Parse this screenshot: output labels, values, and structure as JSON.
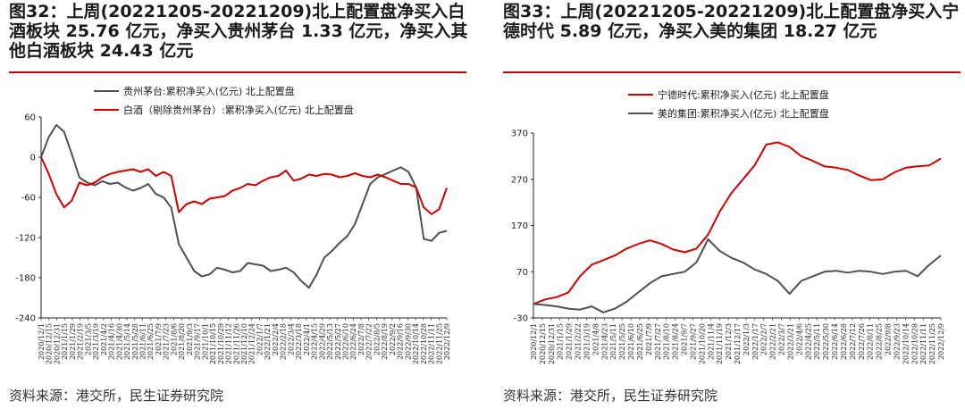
{
  "left": {
    "title": "图32：上周(20221205-20221209)北上配置盘净买入白酒板块 25.76 亿元，净买入贵州茅台 1.33 亿元，净买入其他白酒板块 24.43 亿元",
    "source": "资料来源：港交所，民生证券研究院"
  },
  "right": {
    "title": "图33：上周(20221205-20221209)北上配置盘净买入宁德时代 5.89 亿元，净买入美的集团 18.27 亿元",
    "source": "资料来源：港交所，民生证券研究院"
  },
  "chart_data": [
    {
      "type": "line",
      "ylim": [
        -240,
        60
      ],
      "yticks": [
        60,
        0,
        -60,
        -120,
        -180,
        -240
      ],
      "grid": false,
      "legend_position": "top-center",
      "x": [
        "2020/12/1",
        "2020/12/15",
        "2020/12/29",
        "2021/1/12",
        "2021/1/26",
        "2021/2/9",
        "2021/2/23",
        "2021/3/9",
        "2021/3/23",
        "2021/4/6",
        "2021/4/20",
        "2021/5/4",
        "2021/5/18",
        "2021/6/1",
        "2021/6/15",
        "2021/6/29",
        "2021/7/13",
        "2021/7/27",
        "2021/8/10",
        "2021/8/24",
        "2021/9/7",
        "2021/9/21",
        "2021/10/5",
        "2021/10/19",
        "2021/11/2",
        "2021/11/16",
        "2021/11/30",
        "2021/12/14",
        "2021/12/28",
        "2022/1/11",
        "2022/1/25",
        "2022/2/8",
        "2022/2/22",
        "2022/3/8",
        "2022/3/22",
        "2022/4/5",
        "2022/4/19",
        "2022/5/3",
        "2022/5/17",
        "2022/5/31",
        "2022/6/14",
        "2022/6/28",
        "2022/7/12",
        "2022/7/26",
        "2022/8/9",
        "2022/8/23",
        "2022/9/6",
        "2022/9/20",
        "2022/10/4",
        "2022/10/18",
        "2022/11/1",
        "2022/11/15",
        "2022/11/29",
        "2022/12/9"
      ],
      "x_tick_labels": [
        "2020/12/1",
        "2020/12/15",
        "2020/12/31",
        "2021/1/15",
        "2021/1/29",
        "2021/2/19",
        "2021/3/5",
        "2021/3/19",
        "2021/4/2",
        "2021/4/16",
        "2021/4/30",
        "2021/5/14",
        "2021/5/28",
        "2021/6/11",
        "2021/6/25",
        "2021/7/9",
        "2021/7/23",
        "2021/8/6",
        "2021/8/20",
        "2021/9/3",
        "2021/9/17",
        "2021/10/1",
        "2021/10/15",
        "2021/10/29",
        "2021/11/12",
        "2021/11/26",
        "2021/12/10",
        "2021/12/24",
        "2022/1/7",
        "2022/1/21",
        "2022/2/4",
        "2022/2/18",
        "2022/3/4",
        "2022/3/18",
        "2022/4/1",
        "2022/4/15",
        "2022/4/29",
        "2022/5/13",
        "2022/5/27",
        "2022/6/10",
        "2022/6/24",
        "2022/7/8",
        "2022/7/22",
        "2022/8/5",
        "2022/8/19",
        "2022/9/2",
        "2022/9/16",
        "2022/9/30",
        "2022/10/14",
        "2022/10/28",
        "2022/11/11",
        "2022/11/25",
        "2022/12/9"
      ],
      "series": [
        {
          "name": "贵州茅台:累积净买入(亿元) 北上配置盘",
          "color": "#505050",
          "values": [
            0,
            30,
            48,
            38,
            5,
            -30,
            -38,
            -42,
            -36,
            -40,
            -38,
            -45,
            -50,
            -46,
            -40,
            -55,
            -60,
            -75,
            -130,
            -150,
            -170,
            -178,
            -175,
            -165,
            -168,
            -172,
            -170,
            -158,
            -160,
            -162,
            -170,
            -168,
            -165,
            -172,
            -185,
            -195,
            -175,
            -150,
            -140,
            -128,
            -118,
            -100,
            -70,
            -40,
            -30,
            -25,
            -20,
            -15,
            -22,
            -45,
            -122,
            -125,
            -113,
            -110
          ]
        },
        {
          "name": "白酒（剔除贵州茅台）:累积净买入(亿元) 北上配置盘",
          "color": "#d00000",
          "values": [
            0,
            -25,
            -55,
            -75,
            -65,
            -38,
            -42,
            -38,
            -30,
            -25,
            -22,
            -20,
            -18,
            -22,
            -18,
            -28,
            -22,
            -28,
            -82,
            -70,
            -66,
            -70,
            -62,
            -60,
            -58,
            -50,
            -46,
            -40,
            -42,
            -35,
            -30,
            -28,
            -20,
            -35,
            -32,
            -26,
            -28,
            -25,
            -26,
            -30,
            -28,
            -24,
            -28,
            -30,
            -26,
            -30,
            -35,
            -40,
            -40,
            -45,
            -75,
            -85,
            -78,
            -46
          ]
        }
      ]
    },
    {
      "type": "line",
      "ylim": [
        -30,
        370
      ],
      "yticks": [
        370,
        270,
        170,
        70,
        -30
      ],
      "grid": false,
      "legend_position": "top-center",
      "x": [
        "2020/12/1",
        "2020/12/22",
        "2021/1/12",
        "2021/2/2",
        "2021/2/23",
        "2021/3/16",
        "2021/4/6",
        "2021/4/27",
        "2021/5/18",
        "2021/6/8",
        "2021/6/29",
        "2021/7/20",
        "2021/8/10",
        "2021/8/31",
        "2021/9/21",
        "2021/10/12",
        "2021/11/2",
        "2021/11/23",
        "2021/12/14",
        "2022/1/4",
        "2022/1/25",
        "2022/2/15",
        "2022/3/8",
        "2022/3/29",
        "2022/4/19",
        "2022/5/10",
        "2022/5/31",
        "2022/6/21",
        "2022/7/12",
        "2022/8/2",
        "2022/8/23",
        "2022/9/13",
        "2022/10/4",
        "2022/10/25",
        "2022/11/15",
        "2022/12/9"
      ],
      "x_tick_labels": [
        "2020/12/1",
        "2020/12/15",
        "2020/12/31",
        "2021/1/15",
        "2021/1/29",
        "2021/2/22",
        "2021/3/19",
        "2021/4/8",
        "2021/4/23",
        "2021/5/11",
        "2021/5/25",
        "2021/6/10",
        "2021/6/25",
        "2021/7/9",
        "2021/7/27",
        "2021/8/10",
        "2021/8/24",
        "2021/9/7",
        "2021/9/27",
        "2021/10/20",
        "2021/11/4",
        "2021/11/19",
        "2021/12/3",
        "2021/12/17",
        "2022/1/3",
        "2022/1/17",
        "2022/2/7",
        "2022/2/21",
        "2022/3/7",
        "2022/3/21",
        "2022/4/6",
        "2022/4/25",
        "2022/5/11",
        "2022/5/30",
        "2022/6/14",
        "2022/6/28",
        "2022/7/12",
        "2022/7/26",
        "2022/8/11",
        "2022/8/25",
        "2022/9/8",
        "2022/9/23",
        "2022/10/14",
        "2022/10/28",
        "2022/11/11",
        "2022/11/25",
        "2022/12/9"
      ],
      "series": [
        {
          "name": "宁德时代:累积净买入(亿元) 北上配置盘",
          "color": "#d00000",
          "values": [
            0,
            10,
            15,
            25,
            60,
            85,
            95,
            105,
            120,
            130,
            138,
            130,
            118,
            112,
            120,
            150,
            200,
            240,
            270,
            300,
            345,
            350,
            340,
            320,
            310,
            298,
            295,
            290,
            278,
            268,
            270,
            285,
            295,
            298,
            300,
            315
          ]
        },
        {
          "name": "美的集团:累积净买入(亿元) 北上配置盘",
          "color": "#505050",
          "values": [
            0,
            -2,
            -5,
            -10,
            -12,
            -5,
            -18,
            -10,
            5,
            25,
            45,
            60,
            65,
            70,
            90,
            140,
            115,
            100,
            90,
            75,
            65,
            50,
            22,
            50,
            60,
            70,
            72,
            68,
            72,
            70,
            65,
            70,
            72,
            60,
            85,
            105
          ]
        }
      ]
    }
  ]
}
